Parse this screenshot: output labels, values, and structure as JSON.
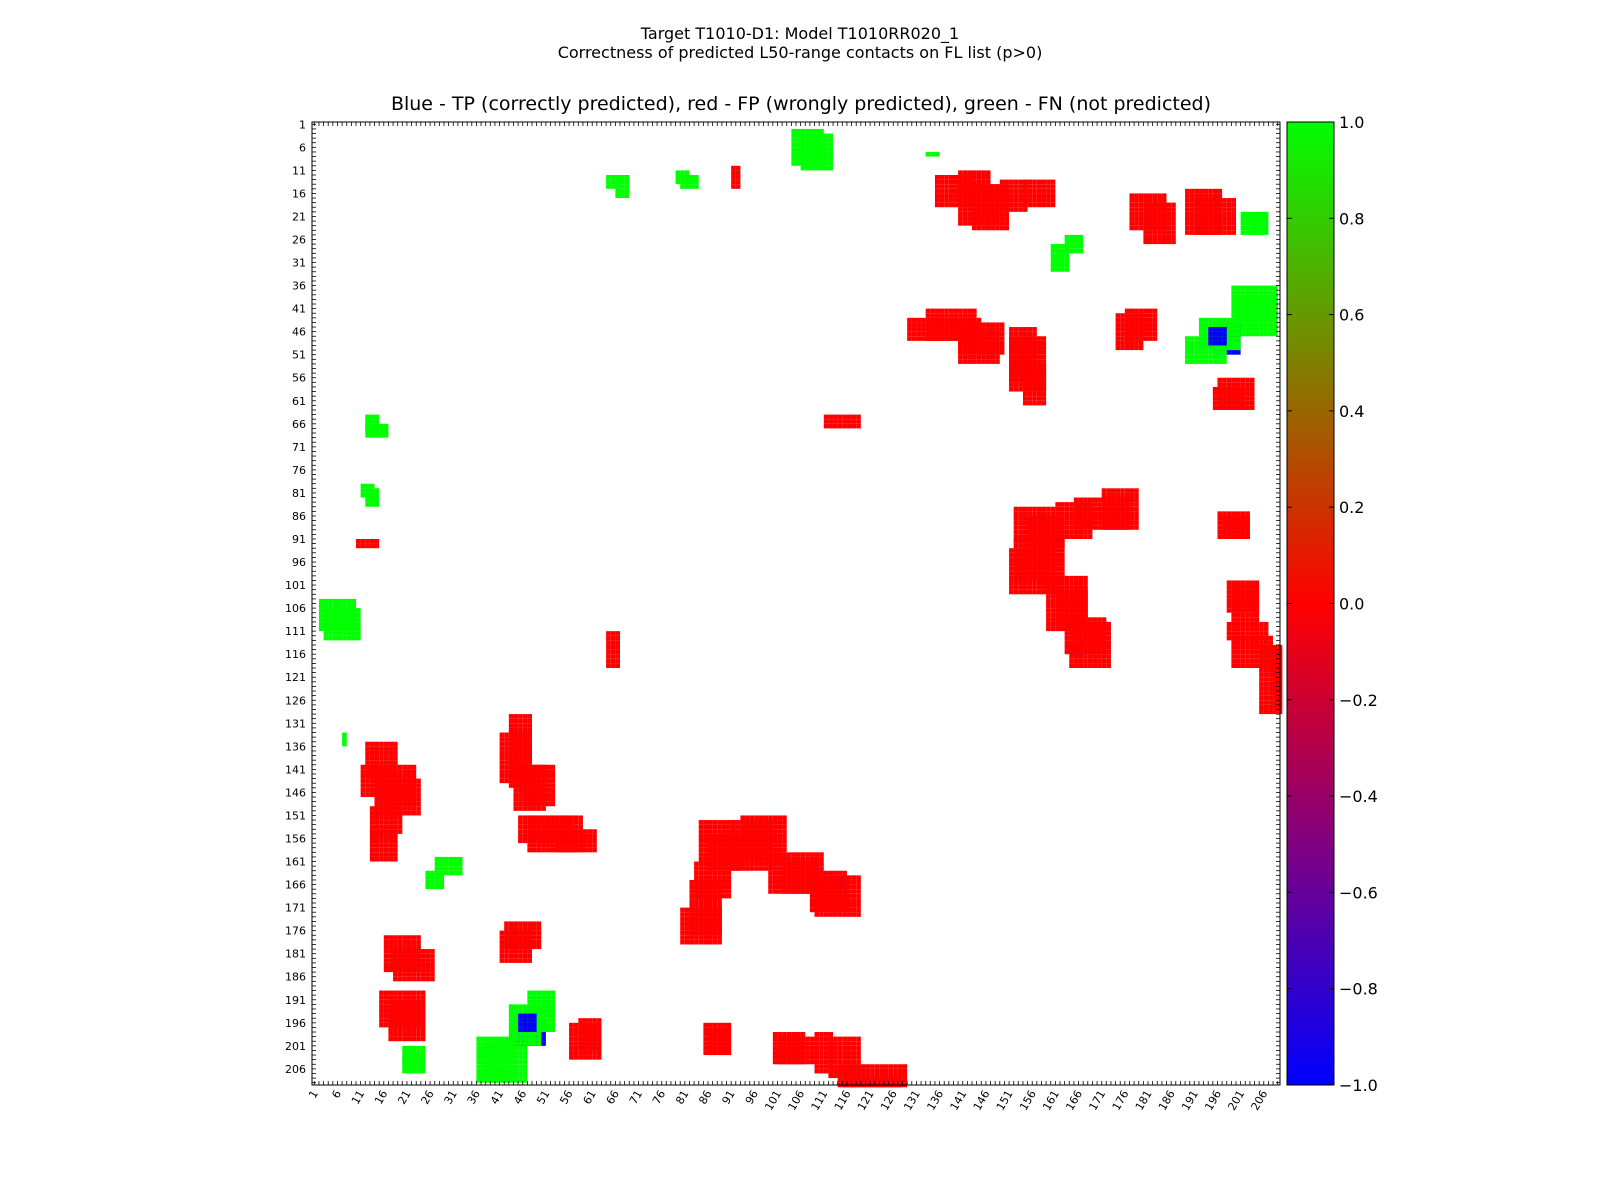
{
  "window": {
    "title_line1": "Target T1010-D1: Model T1010RR020_1",
    "title_line2": "Correctness of predicted L50-range contacts on FL list (p>0)"
  },
  "chart_data": {
    "type": "heatmap",
    "title": "Blue - TP (correctly predicted), red - FP (wrongly predicted), green - FN (not predicted)",
    "xlabel": "",
    "ylabel": "",
    "xlim": [
      1,
      209
    ],
    "ylim": [
      1,
      209
    ],
    "x_ticks": [
      1,
      6,
      11,
      16,
      21,
      26,
      31,
      36,
      41,
      46,
      51,
      56,
      61,
      66,
      71,
      76,
      81,
      86,
      91,
      96,
      101,
      106,
      111,
      116,
      121,
      126,
      131,
      136,
      141,
      146,
      151,
      156,
      161,
      166,
      171,
      176,
      181,
      186,
      191,
      196,
      201,
      206
    ],
    "y_ticks": [
      1,
      6,
      11,
      16,
      21,
      26,
      31,
      36,
      41,
      46,
      51,
      56,
      61,
      66,
      71,
      76,
      81,
      86,
      91,
      96,
      101,
      106,
      111,
      116,
      121,
      126,
      131,
      136,
      141,
      146,
      151,
      156,
      161,
      166,
      171,
      176,
      181,
      186,
      191,
      196,
      201,
      206
    ],
    "colorbar": {
      "min": -1.0,
      "max": 1.0,
      "ticks": [
        "1.0",
        "0.8",
        "0.6",
        "0.4",
        "0.2",
        "0.0",
        "−0.2",
        "−0.4",
        "−0.6",
        "−0.8",
        "−1.0"
      ],
      "colors": [
        "#0000ff",
        "#ff0000",
        "#00ff00"
      ]
    },
    "legend": {
      "tp": {
        "value": -1,
        "color": "#0000ff"
      },
      "fp": {
        "value": 0,
        "color": "#ff0000"
      },
      "fn": {
        "value": 1,
        "color": "#00ff00"
      }
    },
    "rect_note": "clusters given as [x1, x2, y1, y2, value] in residue units; mirrored across diagonal",
    "clusters": [
      [
        143,
        150,
        14,
        23,
        0
      ],
      [
        140,
        146,
        11,
        15,
        0
      ],
      [
        154,
        160,
        13,
        18,
        0
      ],
      [
        180,
        186,
        18,
        26,
        0
      ],
      [
        191,
        199,
        17,
        24,
        0
      ],
      [
        91,
        92,
        10,
        14,
        0
      ],
      [
        133,
        135,
        7,
        7,
        1
      ],
      [
        106,
        112,
        3,
        10,
        1
      ],
      [
        66,
        68,
        12,
        16,
        1
      ],
      [
        80,
        83,
        12,
        14,
        1
      ],
      [
        163,
        166,
        25,
        28,
        1
      ],
      [
        201,
        205,
        20,
        24,
        1
      ],
      [
        129,
        144,
        43,
        47,
        0
      ],
      [
        140,
        148,
        46,
        52,
        0
      ],
      [
        151,
        158,
        47,
        58,
        0
      ],
      [
        176,
        182,
        41,
        47,
        0
      ],
      [
        196,
        203,
        56,
        62,
        0
      ],
      [
        111,
        118,
        64,
        66,
        0
      ],
      [
        199,
        208,
        36,
        46,
        1
      ],
      [
        195,
        200,
        44,
        50,
        -1
      ],
      [
        189,
        197,
        47,
        52,
        1
      ],
      [
        155,
        162,
        86,
        92,
        0
      ],
      [
        161,
        168,
        83,
        90,
        0
      ],
      [
        171,
        178,
        80,
        88,
        0
      ],
      [
        151,
        160,
        93,
        102,
        0
      ],
      [
        161,
        167,
        102,
        109,
        0
      ],
      [
        164,
        172,
        109,
        118,
        0
      ],
      [
        196,
        202,
        85,
        90,
        0
      ],
      [
        198,
        204,
        100,
        106,
        0
      ],
      [
        198,
        206,
        109,
        112,
        0
      ],
      [
        205,
        209,
        114,
        128,
        0
      ],
      [
        164,
        166,
        114,
        115,
        -1
      ],
      [
        12,
        18,
        135,
        142,
        0
      ],
      [
        14,
        22,
        140,
        148,
        0
      ],
      [
        13,
        19,
        149,
        154,
        0
      ],
      [
        41,
        47,
        133,
        143,
        0
      ],
      [
        44,
        50,
        140,
        149,
        0
      ],
      [
        45,
        56,
        151,
        156,
        0
      ],
      [
        53,
        61,
        154,
        158,
        0
      ],
      [
        84,
        91,
        152,
        160,
        0
      ],
      [
        91,
        99,
        152,
        162,
        0
      ],
      [
        99,
        110,
        159,
        167,
        0
      ],
      [
        108,
        115,
        163,
        171,
        0
      ],
      [
        82,
        88,
        165,
        176,
        0
      ],
      [
        42,
        49,
        174,
        179,
        0
      ],
      [
        16,
        23,
        177,
        184,
        0
      ],
      [
        15,
        24,
        189,
        196,
        0
      ],
      [
        58,
        62,
        195,
        201,
        0
      ],
      [
        86,
        90,
        197,
        202,
        0
      ],
      [
        101,
        108,
        199,
        204,
        0
      ],
      [
        112,
        118,
        199,
        207,
        0
      ],
      [
        115,
        127,
        208,
        209,
        0
      ],
      [
        27,
        32,
        160,
        163,
        1
      ],
      [
        38,
        42,
        200,
        208,
        1
      ],
      [
        43,
        49,
        192,
        200,
        1
      ],
      [
        45,
        48,
        194,
        197,
        -1
      ],
      [
        20,
        24,
        203,
        206,
        1
      ],
      [
        2,
        9,
        104,
        110,
        1
      ],
      [
        12,
        14,
        64,
        66,
        1
      ],
      [
        11,
        13,
        79,
        81,
        1
      ]
    ]
  }
}
